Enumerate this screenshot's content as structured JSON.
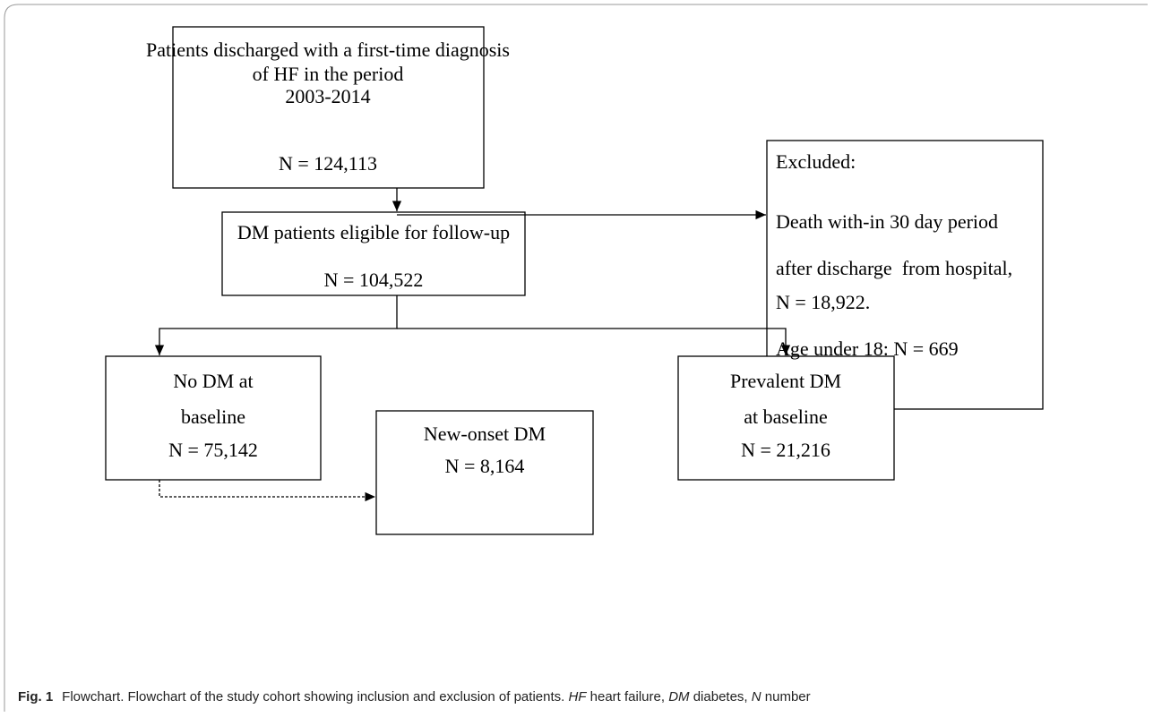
{
  "nodes": [
    {
      "lines": [
        "Patients discharged with a first-time diagnosis",
        "of HF in the period",
        "2003-2014",
        "N = 124,113"
      ]
    },
    {
      "lines": [
        "Excluded:",
        "Death with-in 30 day period",
        "after discharge  from hospital,",
        "N = 18,922.",
        "Age under 18: N = 669"
      ]
    },
    {
      "lines": [
        "DM patients eligible for follow-up",
        "N = 104,522"
      ]
    },
    {
      "lines": [
        "No DM at",
        "baseline",
        "N = 75,142"
      ]
    },
    {
      "lines": [
        "Prevalent DM",
        "at baseline",
        "N = 21,216"
      ]
    },
    {
      "lines": [
        "New-onset DM",
        "N = 8,164"
      ]
    }
  ],
  "caption": {
    "label": "Fig. 1",
    "text": "Flowchart. Flowchart of the study cohort showing inclusion and exclusion of patients.",
    "abbreviations": [
      {
        "term": "HF",
        "definition": "heart failure,"
      },
      {
        "term": "DM",
        "definition": "diabetes,"
      },
      {
        "term": "N",
        "definition": "number"
      }
    ]
  }
}
